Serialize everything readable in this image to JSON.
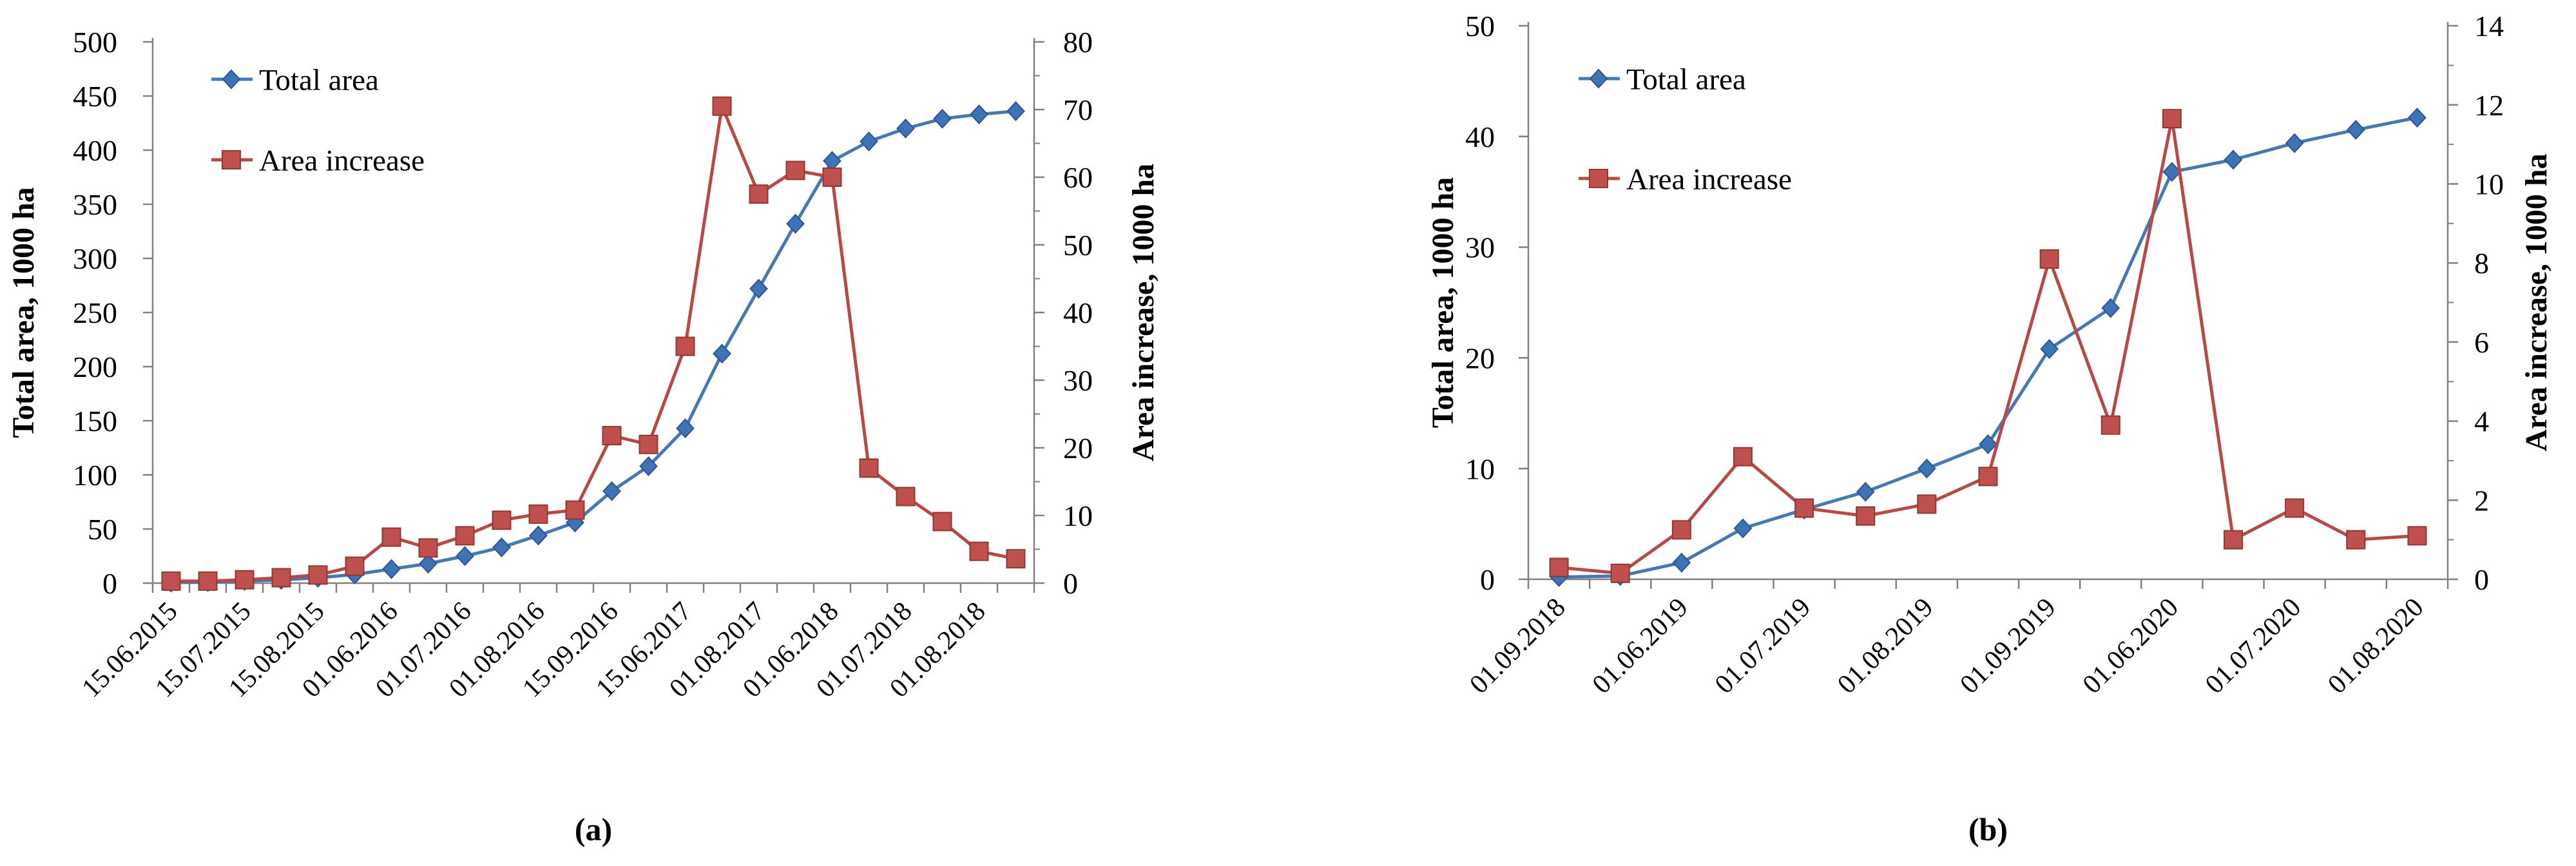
{
  "figure": {
    "background": "#ffffff"
  },
  "captions": {
    "a": "(a)",
    "b": "(b)"
  },
  "legend_labels": [
    "Total area",
    "Area increase"
  ],
  "colors": {
    "total_area_line": "#4678B2",
    "total_area_fill": "#3E74B5",
    "total_area_edge": "#2E5591",
    "area_increase_line": "#B64A47",
    "area_increase_fill": "#C0504D",
    "area_increase_edge": "#8E3834",
    "axis": "#808080",
    "text": "#000000"
  },
  "chart_data": [
    {
      "id": "a",
      "type": "line",
      "caption": "(a)",
      "n_points": 24,
      "x_tick_labels": [
        "15.06.2015",
        "15.07.2015",
        "15.08.2015",
        "01.06.2016",
        "01.07.2016",
        "01.08.2016",
        "15.09.2016",
        "15.06.2017",
        "01.08.2017",
        "01.06.2018",
        "01.07.2018",
        "01.08.2018"
      ],
      "label_point_indices": [
        1,
        3,
        5,
        7,
        9,
        11,
        13,
        15,
        17,
        19,
        21,
        23
      ],
      "left_axis": {
        "title": "Total area, 1000 ha",
        "min": 0,
        "max": 500,
        "step": 50
      },
      "right_axis": {
        "title": "Area increase, 1000 ha",
        "min": 0,
        "max": 80,
        "step": 10,
        "minor_step": 5
      },
      "legend": {
        "position": "inside-top-left",
        "items": [
          "Total area",
          "Area increase"
        ]
      },
      "grid": "off",
      "series": [
        {
          "name": "Total area",
          "axis": "left",
          "marker": "diamond",
          "values": [
            0.5,
            1,
            2,
            3,
            5,
            8,
            13,
            18,
            25,
            33,
            44,
            56,
            85,
            108,
            143,
            212,
            272,
            332,
            390,
            408,
            420,
            429,
            433,
            436
          ]
        },
        {
          "name": "Area increase",
          "axis": "right",
          "marker": "square",
          "values": [
            0.3,
            0.3,
            0.5,
            0.8,
            1.2,
            2.5,
            6.8,
            5.2,
            7.0,
            9.3,
            10.2,
            10.8,
            21.8,
            20.5,
            35,
            70.5,
            57.5,
            61,
            60,
            17,
            12.8,
            9.1,
            4.7,
            3.6
          ]
        }
      ]
    },
    {
      "id": "b",
      "type": "line",
      "caption": "(b)",
      "n_points": 15,
      "x_tick_labels": [
        "01.09.2018",
        "01.06.2019",
        "01.07.2019",
        "01.08.2019",
        "01.09.2019",
        "01.06.2020",
        "01.07.2020",
        "01.08.2020"
      ],
      "label_point_indices": [
        1,
        3,
        5,
        7,
        9,
        11,
        13,
        15
      ],
      "left_axis": {
        "title": "Total area, 1000 ha",
        "min": 0,
        "max": 50,
        "step": 10
      },
      "right_axis": {
        "title": "Area increase, 1000 ha",
        "min": 0,
        "max": 14,
        "step": 2,
        "minor_step": 1
      },
      "legend": {
        "position": "inside-top-left",
        "items": [
          "Total area",
          "Area increase"
        ]
      },
      "grid": "off",
      "series": [
        {
          "name": "Total area",
          "axis": "left",
          "marker": "diamond",
          "values": [
            0.2,
            0.3,
            1.5,
            4.6,
            6.3,
            7.9,
            10.0,
            12.2,
            20.8,
            24.5,
            36.8,
            37.9,
            39.4,
            40.6,
            41.7
          ]
        },
        {
          "name": "Area increase",
          "axis": "right",
          "marker": "square",
          "values": [
            0.3,
            0.15,
            1.25,
            3.1,
            1.8,
            1.6,
            1.9,
            2.6,
            8.1,
            3.9,
            11.65,
            1.0,
            1.8,
            1.0,
            1.1
          ]
        }
      ]
    }
  ]
}
